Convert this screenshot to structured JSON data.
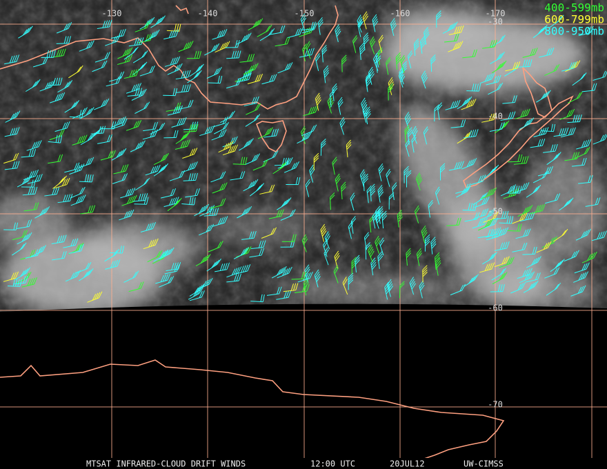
{
  "map": {
    "longitude_labels": [
      "-130",
      "-140",
      "-150",
      "-160",
      "-170"
    ],
    "latitude_labels": [
      "-30",
      "-40",
      "-50",
      "-60",
      "-70"
    ],
    "legend": [
      {
        "label": "400-599mb",
        "color": "#33ff33"
      },
      {
        "label": "600-799mb",
        "color": "#ffff33"
      },
      {
        "label": "800-950mb",
        "color": "#33ffff"
      }
    ],
    "footer": {
      "product": "MTSAT INFRARED-CLOUD DRIFT WINDS",
      "time": "12:00 UTC",
      "date": "20JUL12",
      "source": "UW-CIMSS"
    }
  }
}
